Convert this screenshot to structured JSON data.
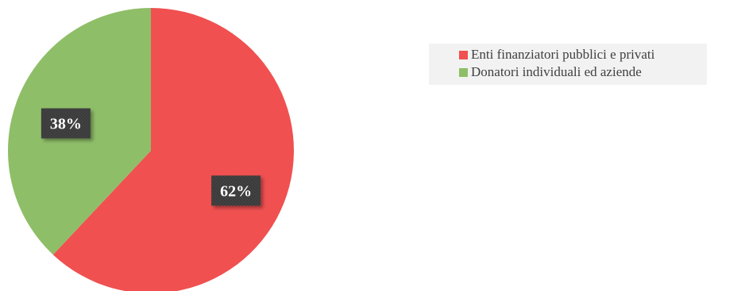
{
  "chart_data": {
    "type": "pie",
    "categories": [
      "Enti finanziatori pubblici e privati",
      "Donatori individuali ed aziende"
    ],
    "values": [
      62,
      38
    ],
    "value_labels": [
      "62%",
      "38%"
    ],
    "colors": [
      "#f05050",
      "#8fbe68"
    ],
    "title": "",
    "legend_position": "top-right"
  },
  "legend": {
    "items": [
      {
        "label": "Enti finanziatori pubblici e privati",
        "color": "#f05050"
      },
      {
        "label": "Donatori individuali ed aziende",
        "color": "#8fbe68"
      }
    ]
  }
}
